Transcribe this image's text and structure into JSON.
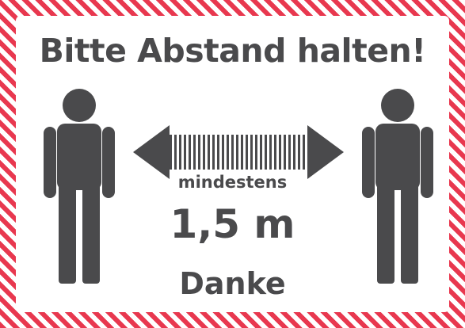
{
  "sign": {
    "title": "Bitte Abstand halten!",
    "min_label": "mindestens",
    "distance": "1,5 m",
    "thanks": "Danke"
  },
  "colors": {
    "stripe_red": "#e8384f",
    "figure_gray": "#4a4a4c",
    "background": "#ffffff"
  },
  "icons": [
    "person-left-icon",
    "double-arrow-icon",
    "person-right-icon"
  ]
}
